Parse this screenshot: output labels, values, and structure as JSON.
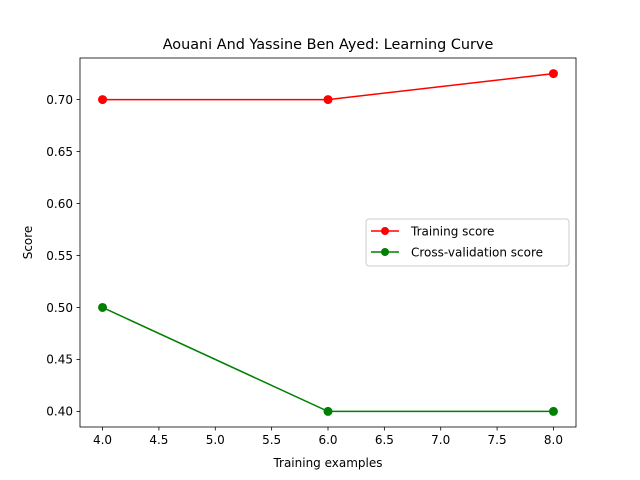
{
  "chart_data": {
    "type": "line",
    "title": "Aouani And Yassine Ben Ayed: Learning Curve",
    "xlabel": "Training examples",
    "ylabel": "Score",
    "x": [
      4.0,
      6.0,
      8.0
    ],
    "xlim": [
      3.8,
      8.2
    ],
    "ylim": [
      0.385,
      0.74
    ],
    "xticks": [
      4.0,
      4.5,
      5.0,
      5.5,
      6.0,
      6.5,
      7.0,
      7.5,
      8.0
    ],
    "xtick_labels": [
      "4.0",
      "4.5",
      "5.0",
      "5.5",
      "6.0",
      "6.5",
      "7.0",
      "7.5",
      "8.0"
    ],
    "yticks": [
      0.4,
      0.45,
      0.5,
      0.55,
      0.6,
      0.65,
      0.7
    ],
    "ytick_labels": [
      "0.40",
      "0.45",
      "0.50",
      "0.55",
      "0.60",
      "0.65",
      "0.70"
    ],
    "grid": false,
    "legend_position": "center-right",
    "series": [
      {
        "name": "Training score",
        "values": [
          0.7,
          0.7,
          0.725
        ],
        "color": "#ff0000",
        "marker": "circle"
      },
      {
        "name": "Cross-validation score",
        "values": [
          0.5,
          0.4,
          0.4
        ],
        "color": "#008000",
        "marker": "circle"
      }
    ]
  }
}
